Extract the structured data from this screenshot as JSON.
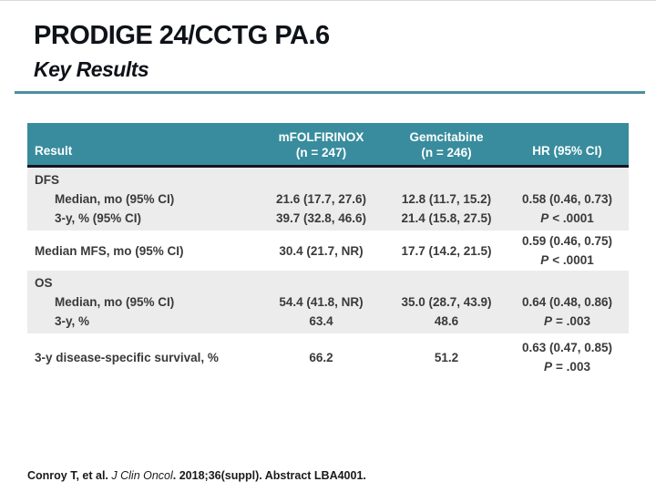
{
  "slide": {
    "title": "PRODIGE 24/CCTG PA.6",
    "subtitle": "Key Results"
  },
  "colors": {
    "header_teal": "#388c9d",
    "rule_teal": "#4a8f9e",
    "header_border": "#15151f",
    "zebra_gray": "#ececec"
  },
  "table": {
    "header": {
      "col1": "Result",
      "col2_line1": "mFOLFIRINOX",
      "col2_line2": "(n = 247)",
      "col3_line1": "Gemcitabine",
      "col3_line2": "(n = 246)",
      "col4": "HR (95% CI)"
    },
    "rows": [
      {
        "group": "DFS",
        "line1_label": "Median, mo (95% CI)",
        "line2_label": "3-y, % (95% CI)",
        "line1_col2": "21.6 (17.7, 27.6)",
        "line2_col2": "39.7 (32.8, 46.6)",
        "line1_col3": "12.8 (11.7, 15.2)",
        "line2_col3": "21.4 (15.8, 27.5)",
        "hr": "0.58 (0.46, 0.73)",
        "p_label": "P",
        "p_text": "< .0001"
      },
      {
        "label": "Median MFS, mo (95% CI)",
        "col2": "30.4 (21.7, NR)",
        "col3": "17.7 (14.2, 21.5)",
        "hr": "0.59 (0.46, 0.75)",
        "p_label": "P",
        "p_text": "< .0001"
      },
      {
        "group": "OS",
        "line1_label": "Median, mo (95% CI)",
        "line2_label": "3-y, %",
        "line1_col2": "54.4 (41.8, NR)",
        "line2_col2": "63.4",
        "line1_col3": "35.0 (28.7, 43.9)",
        "line2_col3": "48.6",
        "hr": "0.64 (0.48, 0.86)",
        "p_label": "P",
        "p_text": "= .003"
      },
      {
        "label": "3-y disease-specific survival, %",
        "col2": "66.2",
        "col3": "51.2",
        "hr": "0.63 (0.47, 0.85)",
        "p_label": "P",
        "p_text": "= .003"
      }
    ]
  },
  "footer": {
    "pre": "Conroy T, et al. ",
    "journal": "J Clin Oncol",
    "post": ". 2018;36(suppl). Abstract LBA4001."
  }
}
